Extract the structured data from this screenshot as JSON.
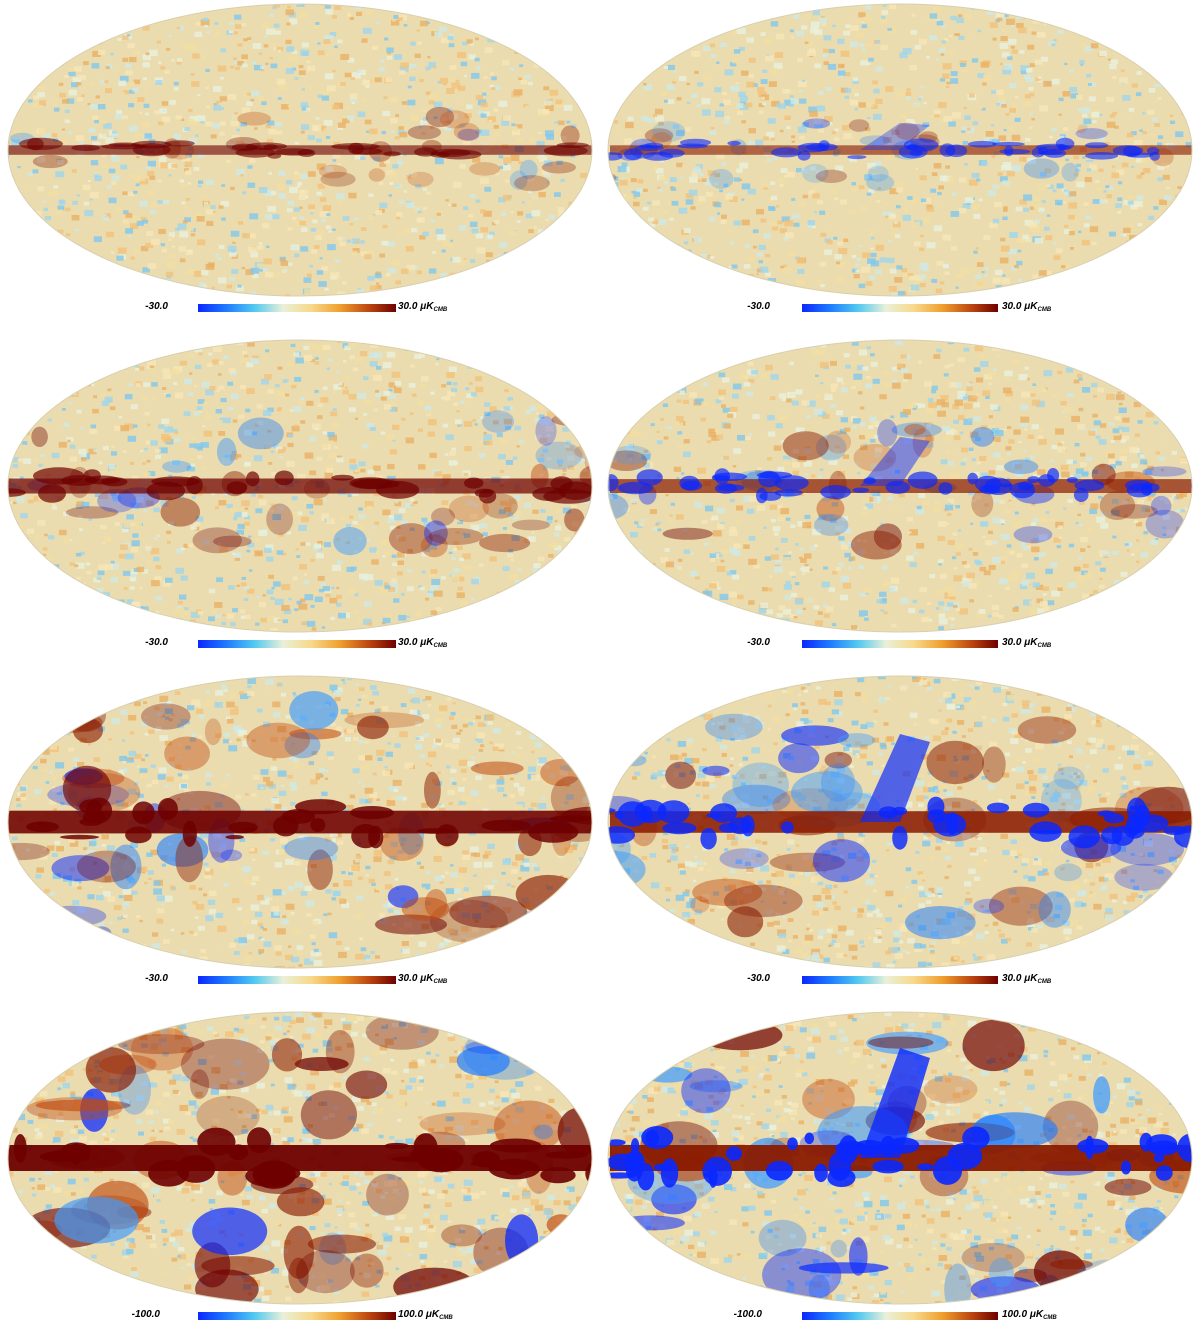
{
  "colormap": {
    "stops": [
      "#0a28ff",
      "#1e7bff",
      "#52c9f0",
      "#e9f0d8",
      "#f7d98a",
      "#f0a030",
      "#c04a10",
      "#6e0000"
    ]
  },
  "panels": [
    {
      "id": "r1-left",
      "cmin": "-30.0",
      "cmax": "30.0",
      "unit_prefix": "μK",
      "unit_sub": "CMB",
      "variant": "A",
      "intensity": 0.25
    },
    {
      "id": "r1-right",
      "cmin": "-30.0",
      "cmax": "30.0",
      "unit_prefix": "μK",
      "unit_sub": "CMB",
      "variant": "B",
      "intensity": 0.25
    },
    {
      "id": "r2-left",
      "cmin": "-30.0",
      "cmax": "30.0",
      "unit_prefix": "μK",
      "unit_sub": "CMB",
      "variant": "A",
      "intensity": 0.5
    },
    {
      "id": "r2-right",
      "cmin": "-30.0",
      "cmax": "30.0",
      "unit_prefix": "μK",
      "unit_sub": "CMB",
      "variant": "B",
      "intensity": 0.45
    },
    {
      "id": "r3-left",
      "cmin": "-30.0",
      "cmax": "30.0",
      "unit_prefix": "μK",
      "unit_sub": "CMB",
      "variant": "A",
      "intensity": 0.85
    },
    {
      "id": "r3-right",
      "cmin": "-30.0",
      "cmax": "30.0",
      "unit_prefix": "μK",
      "unit_sub": "CMB",
      "variant": "B",
      "intensity": 0.8
    },
    {
      "id": "r4-left",
      "cmin": "-100.0",
      "cmax": "100.0",
      "unit_prefix": "μK",
      "unit_sub": "CMB",
      "variant": "A",
      "intensity": 1.0
    },
    {
      "id": "r4-right",
      "cmin": "-100.0",
      "cmax": "100.0",
      "unit_prefix": "μK",
      "unit_sub": "CMB",
      "variant": "B",
      "intensity": 1.0
    }
  ]
}
